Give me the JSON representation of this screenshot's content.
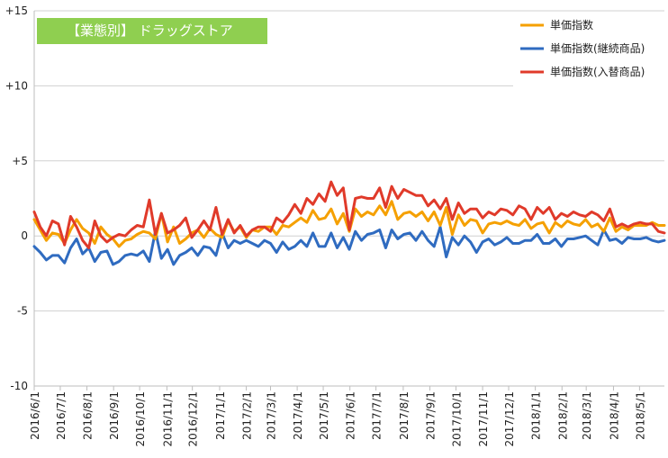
{
  "chart_data": {
    "type": "line",
    "title": "【業態別】 ドラッグストア",
    "xlabel": "",
    "ylabel": "",
    "ylim": [
      -10,
      15
    ],
    "y_ticks": [
      {
        "value": 15,
        "label": "+15"
      },
      {
        "value": 10,
        "label": "+10"
      },
      {
        "value": 5,
        "label": "+5"
      },
      {
        "value": 0,
        "label": "0"
      },
      {
        "value": -5,
        "label": "-5"
      },
      {
        "value": -10,
        "label": "-10"
      }
    ],
    "x_ticks": [
      {
        "week": 0,
        "label": "2016/6/1"
      },
      {
        "week": 4.3,
        "label": "2016/7/1"
      },
      {
        "week": 8.7,
        "label": "2016/8/1"
      },
      {
        "week": 13.1,
        "label": "2016/9/1"
      },
      {
        "week": 17.4,
        "label": "2016/10/1"
      },
      {
        "week": 21.9,
        "label": "2016/11/1"
      },
      {
        "week": 26.1,
        "label": "2016/12/1"
      },
      {
        "week": 30.6,
        "label": "2017/1/1"
      },
      {
        "week": 35.0,
        "label": "2017/2/1"
      },
      {
        "week": 39.0,
        "label": "2017/3/1"
      },
      {
        "week": 43.4,
        "label": "2017/4/1"
      },
      {
        "week": 47.7,
        "label": "2017/5/1"
      },
      {
        "week": 52.1,
        "label": "2017/6/1"
      },
      {
        "week": 56.4,
        "label": "2017/7/1"
      },
      {
        "week": 60.9,
        "label": "2017/8/1"
      },
      {
        "week": 65.3,
        "label": "2017/9/1"
      },
      {
        "week": 69.6,
        "label": "2017/10/1"
      },
      {
        "week": 74.0,
        "label": "2017/11/1"
      },
      {
        "week": 78.3,
        "label": "2017/12/1"
      },
      {
        "week": 82.7,
        "label": "2018/1/1"
      },
      {
        "week": 87.1,
        "label": "2018/2/1"
      },
      {
        "week": 91.1,
        "label": "2018/3/1"
      },
      {
        "week": 95.6,
        "label": "2018/4/1"
      },
      {
        "week": 99.9,
        "label": "2018/5/1"
      }
    ],
    "grid": true,
    "legend_position": "top-right",
    "series": [
      {
        "name": "単価指数",
        "color": "#f5a000",
        "values": [
          1.1,
          0.4,
          -0.3,
          0.2,
          0.1,
          -0.5,
          0.4,
          1.1,
          0.5,
          0.2,
          -0.5,
          0.6,
          0.1,
          -0.2,
          -0.7,
          -0.3,
          -0.2,
          0.1,
          0.3,
          0.2,
          -0.2,
          1.5,
          -0.4,
          0.6,
          -0.5,
          -0.2,
          0.2,
          0.4,
          -0.1,
          0.5,
          0.1,
          -0.1,
          1.0,
          0.3,
          0.6,
          -0.1,
          0.4,
          0.3,
          0.6,
          0.6,
          0.1,
          0.7,
          0.6,
          0.9,
          1.2,
          0.9,
          1.7,
          1.1,
          1.2,
          1.8,
          0.8,
          1.5,
          0.3,
          1.8,
          1.3,
          1.6,
          1.4,
          2.0,
          1.4,
          2.3,
          1.1,
          1.5,
          1.6,
          1.3,
          1.6,
          1.0,
          1.6,
          0.7,
          1.9,
          0.1,
          1.4,
          0.7,
          1.1,
          1.0,
          0.2,
          0.8,
          0.9,
          0.8,
          1.0,
          0.8,
          0.7,
          1.1,
          0.5,
          0.8,
          0.9,
          0.2,
          0.9,
          0.6,
          1.0,
          0.8,
          0.7,
          1.1,
          0.6,
          0.8,
          0.3,
          1.2,
          0.3,
          0.6,
          0.4,
          0.7,
          0.7,
          0.7,
          0.9,
          0.7,
          0.7
        ]
      },
      {
        "name": "単価指数(継続商品)",
        "color": "#2f6bc0",
        "values": [
          -0.7,
          -1.1,
          -1.6,
          -1.3,
          -1.3,
          -1.8,
          -0.8,
          -0.2,
          -1.2,
          -0.8,
          -1.7,
          -1.1,
          -1.0,
          -1.9,
          -1.7,
          -1.3,
          -1.2,
          -1.3,
          -1.0,
          -1.7,
          0.3,
          -1.5,
          -0.9,
          -1.9,
          -1.3,
          -1.1,
          -0.8,
          -1.3,
          -0.7,
          -0.8,
          -1.3,
          0.2,
          -0.8,
          -0.3,
          -0.5,
          -0.3,
          -0.5,
          -0.7,
          -0.3,
          -0.5,
          -1.1,
          -0.4,
          -0.9,
          -0.7,
          -0.3,
          -0.7,
          0.2,
          -0.7,
          -0.7,
          0.2,
          -0.8,
          -0.1,
          -0.9,
          0.3,
          -0.3,
          0.1,
          0.2,
          0.4,
          -0.8,
          0.4,
          -0.2,
          0.1,
          0.2,
          -0.3,
          0.3,
          -0.3,
          -0.7,
          0.6,
          -1.4,
          -0.1,
          -0.6,
          0.0,
          -0.4,
          -1.1,
          -0.4,
          -0.2,
          -0.6,
          -0.4,
          -0.1,
          -0.5,
          -0.5,
          -0.3,
          -0.3,
          0.1,
          -0.5,
          -0.5,
          -0.2,
          -0.7,
          -0.2,
          -0.2,
          -0.1,
          0.0,
          -0.3,
          -0.6,
          0.4,
          -0.3,
          -0.2,
          -0.5,
          -0.1,
          -0.2,
          -0.2,
          -0.1,
          -0.3,
          -0.4,
          -0.3
        ]
      },
      {
        "name": "単価指数(入替商品)",
        "color": "#e03a2a",
        "values": [
          1.6,
          0.6,
          0.0,
          1.0,
          0.8,
          -0.6,
          1.3,
          0.6,
          -0.3,
          -0.8,
          1.0,
          0.0,
          -0.4,
          -0.1,
          0.1,
          0.0,
          0.4,
          0.7,
          0.6,
          2.4,
          0.1,
          1.5,
          0.2,
          0.4,
          0.7,
          1.2,
          -0.1,
          0.4,
          1.0,
          0.4,
          1.9,
          0.1,
          1.1,
          0.2,
          0.7,
          0.0,
          0.4,
          0.6,
          0.6,
          0.3,
          1.2,
          0.9,
          1.4,
          2.1,
          1.5,
          2.5,
          2.1,
          2.8,
          2.3,
          3.6,
          2.7,
          3.2,
          0.4,
          2.5,
          2.6,
          2.5,
          2.5,
          3.2,
          1.9,
          3.3,
          2.5,
          3.1,
          2.9,
          2.7,
          2.7,
          2.0,
          2.4,
          1.8,
          2.5,
          1.1,
          2.2,
          1.5,
          1.8,
          1.8,
          1.2,
          1.6,
          1.4,
          1.8,
          1.7,
          1.4,
          2.0,
          1.8,
          1.1,
          1.9,
          1.5,
          1.9,
          1.1,
          1.5,
          1.3,
          1.6,
          1.4,
          1.3,
          1.6,
          1.4,
          1.0,
          1.8,
          0.6,
          0.8,
          0.6,
          0.8,
          0.9,
          0.8,
          0.8,
          0.3,
          0.2
        ]
      }
    ]
  }
}
